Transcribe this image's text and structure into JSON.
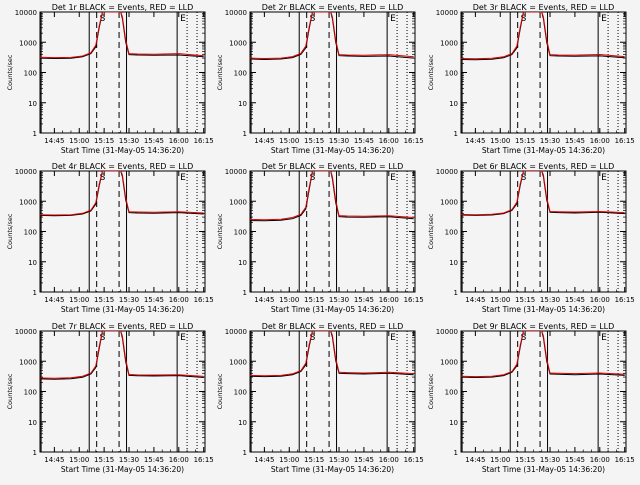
{
  "figure": {
    "background": "#f4f4f4",
    "event_color": "#000000",
    "lld_color": "#e00000"
  },
  "chart_data": [
    {
      "type": "line",
      "title": "Det 1r BLACK = Events, RED = LLD",
      "xlabel": "Start Time (31-May-05 14:36:20)",
      "ylabel": "Counts/sec",
      "yscale": "log",
      "ylim": [
        1,
        10000
      ],
      "yticks": [
        "1",
        "10",
        "100",
        "1000",
        "10000"
      ],
      "xlim": [
        "14:36:20",
        "16:15"
      ],
      "xticks": [
        "14:45",
        "15:00",
        "15:15",
        "15:30",
        "15:45",
        "16:00",
        "16:15"
      ],
      "markers": [
        "S",
        "E"
      ],
      "series": [
        {
          "role": "events",
          "x": [
            "14:36",
            "14:45",
            "14:55",
            "15:02",
            "15:07",
            "15:10",
            "15:12",
            "15:14",
            "15:15",
            "15:25",
            "15:26",
            "15:28",
            "15:30",
            "15:35",
            "15:45",
            "16:00",
            "16:15"
          ],
          "y": [
            300,
            290,
            295,
            330,
            420,
            700,
            3000,
            10000,
            10000,
            10000,
            6000,
            1000,
            390,
            380,
            370,
            380,
            330
          ]
        },
        {
          "role": "lld",
          "x": [
            "14:36",
            "14:45",
            "14:55",
            "15:02",
            "15:07",
            "15:10",
            "15:12",
            "15:14",
            "15:15",
            "15:25",
            "15:26",
            "15:28",
            "15:30",
            "15:35",
            "15:45",
            "16:00",
            "16:15"
          ],
          "y": [
            320,
            310,
            315,
            350,
            450,
            800,
            3500,
            10000,
            10000,
            10000,
            7000,
            1200,
            420,
            410,
            400,
            420,
            360
          ]
        }
      ]
    },
    {
      "type": "line",
      "title": "Det 2r BLACK = Events, RED = LLD",
      "xlabel": "Start Time (31-May-05 14:36:20)",
      "ylabel": "Counts/sec",
      "yscale": "log",
      "ylim": [
        1,
        10000
      ],
      "yticks": [
        "1",
        "10",
        "100",
        "1000",
        "10000"
      ],
      "xlim": [
        "14:36:20",
        "16:15"
      ],
      "xticks": [
        "14:45",
        "15:00",
        "15:15",
        "15:30",
        "15:45",
        "16:00",
        "16:15"
      ],
      "markers": [
        "S",
        "E"
      ],
      "series": [
        {
          "role": "events",
          "x": [
            "14:36",
            "14:45",
            "14:55",
            "15:02",
            "15:07",
            "15:10",
            "15:12",
            "15:14",
            "15:15",
            "15:25",
            "15:26",
            "15:28",
            "15:30",
            "15:35",
            "15:45",
            "16:00",
            "16:15"
          ],
          "y": [
            280,
            270,
            280,
            310,
            400,
            650,
            2800,
            10000,
            10000,
            10000,
            6000,
            1000,
            360,
            350,
            340,
            350,
            300
          ]
        },
        {
          "role": "lld",
          "x": [
            "14:36",
            "14:45",
            "14:55",
            "15:02",
            "15:07",
            "15:10",
            "15:12",
            "15:14",
            "15:15",
            "15:25",
            "15:26",
            "15:28",
            "15:30",
            "15:35",
            "15:45",
            "16:00",
            "16:15"
          ],
          "y": [
            300,
            290,
            300,
            335,
            430,
            750,
            3300,
            10000,
            10000,
            10000,
            7000,
            1200,
            390,
            380,
            370,
            390,
            330
          ]
        }
      ]
    },
    {
      "type": "line",
      "title": "Det 3r BLACK = Events, RED = LLD",
      "xlabel": "Start Time (31-May-05 14:36:20)",
      "ylabel": "Counts/sec",
      "yscale": "log",
      "ylim": [
        1,
        10000
      ],
      "yticks": [
        "1",
        "10",
        "100",
        "1000",
        "10000"
      ],
      "xlim": [
        "14:36:20",
        "16:15"
      ],
      "xticks": [
        "14:45",
        "15:00",
        "15:15",
        "15:30",
        "15:45",
        "16:00",
        "16:15"
      ],
      "markers": [
        "S",
        "E"
      ],
      "series": [
        {
          "role": "events",
          "x": [
            "14:36",
            "14:45",
            "14:55",
            "15:02",
            "15:07",
            "15:10",
            "15:12",
            "15:14",
            "15:15",
            "15:25",
            "15:26",
            "15:28",
            "15:30",
            "15:35",
            "15:45",
            "16:00",
            "16:15"
          ],
          "y": [
            270,
            265,
            275,
            305,
            390,
            640,
            2700,
            10000,
            10000,
            10000,
            6000,
            1000,
            360,
            350,
            345,
            355,
            305
          ]
        },
        {
          "role": "lld",
          "x": [
            "14:36",
            "14:45",
            "14:55",
            "15:02",
            "15:07",
            "15:10",
            "15:12",
            "15:14",
            "15:15",
            "15:25",
            "15:26",
            "15:28",
            "15:30",
            "15:35",
            "15:45",
            "16:00",
            "16:15"
          ],
          "y": [
            290,
            285,
            295,
            330,
            420,
            740,
            3200,
            10000,
            10000,
            10000,
            7000,
            1200,
            390,
            380,
            375,
            395,
            335
          ]
        }
      ]
    },
    {
      "type": "line",
      "title": "Det 4r BLACK = Events, RED = LLD",
      "xlabel": "Start Time (31-May-05 14:36:20)",
      "ylabel": "Counts/sec",
      "yscale": "log",
      "ylim": [
        1,
        10000
      ],
      "yticks": [
        "1",
        "10",
        "100",
        "1000",
        "10000"
      ],
      "xlim": [
        "14:36:20",
        "16:15"
      ],
      "xticks": [
        "14:45",
        "15:00",
        "15:15",
        "15:30",
        "15:45",
        "16:00",
        "16:15"
      ],
      "markers": [
        "S",
        "E"
      ],
      "series": [
        {
          "role": "events",
          "x": [
            "14:36",
            "14:45",
            "14:55",
            "15:02",
            "15:07",
            "15:10",
            "15:12",
            "15:14",
            "15:15",
            "15:25",
            "15:26",
            "15:28",
            "15:30",
            "15:35",
            "15:45",
            "16:00",
            "16:15"
          ],
          "y": [
            340,
            330,
            340,
            380,
            480,
            800,
            3200,
            10000,
            10000,
            10000,
            6500,
            1100,
            420,
            410,
            400,
            420,
            380
          ]
        },
        {
          "role": "lld",
          "x": [
            "14:36",
            "14:45",
            "14:55",
            "15:02",
            "15:07",
            "15:10",
            "15:12",
            "15:14",
            "15:15",
            "15:25",
            "15:26",
            "15:28",
            "15:30",
            "15:35",
            "15:45",
            "16:00",
            "16:15"
          ],
          "y": [
            360,
            350,
            360,
            400,
            510,
            900,
            3700,
            10000,
            10000,
            10000,
            7500,
            1300,
            450,
            440,
            430,
            450,
            410
          ]
        }
      ]
    },
    {
      "type": "line",
      "title": "Det 5r BLACK = Events, RED = LLD",
      "xlabel": "Start Time (31-May-05 14:36:20)",
      "ylabel": "Counts/sec",
      "yscale": "log",
      "ylim": [
        1,
        10000
      ],
      "yticks": [
        "1",
        "10",
        "100",
        "1000",
        "10000"
      ],
      "xlim": [
        "14:36:20",
        "16:15"
      ],
      "xticks": [
        "14:45",
        "15:00",
        "15:15",
        "15:30",
        "15:45",
        "16:00",
        "16:15"
      ],
      "markers": [
        "S",
        "E"
      ],
      "series": [
        {
          "role": "events",
          "x": [
            "14:36",
            "14:45",
            "14:55",
            "15:02",
            "15:07",
            "15:10",
            "15:12",
            "15:14",
            "15:15",
            "15:25",
            "15:26",
            "15:28",
            "15:30",
            "15:35",
            "15:45",
            "16:00",
            "16:15"
          ],
          "y": [
            230,
            225,
            235,
            265,
            340,
            560,
            2400,
            10000,
            10000,
            10000,
            5500,
            900,
            310,
            300,
            295,
            305,
            265
          ]
        },
        {
          "role": "lld",
          "x": [
            "14:36",
            "14:45",
            "14:55",
            "15:02",
            "15:07",
            "15:10",
            "15:12",
            "15:14",
            "15:15",
            "15:25",
            "15:26",
            "15:28",
            "15:30",
            "15:35",
            "15:45",
            "16:00",
            "16:15"
          ],
          "y": [
            250,
            245,
            255,
            290,
            370,
            640,
            2900,
            10000,
            10000,
            10000,
            6500,
            1100,
            335,
            325,
            320,
            330,
            290
          ]
        }
      ]
    },
    {
      "type": "line",
      "title": "Det 6r BLACK = Events, RED = LLD",
      "xlabel": "Start Time (31-May-05 14:36:20)",
      "ylabel": "Counts/sec",
      "yscale": "log",
      "ylim": [
        1,
        10000
      ],
      "yticks": [
        "1",
        "10",
        "100",
        "1000",
        "10000"
      ],
      "xlim": [
        "14:36:20",
        "16:15"
      ],
      "xticks": [
        "14:45",
        "15:00",
        "15:15",
        "15:30",
        "15:45",
        "16:00",
        "16:15"
      ],
      "markers": [
        "S",
        "E"
      ],
      "series": [
        {
          "role": "events",
          "x": [
            "14:36",
            "14:45",
            "14:55",
            "15:02",
            "15:07",
            "15:10",
            "15:12",
            "15:14",
            "15:15",
            "15:25",
            "15:26",
            "15:28",
            "15:30",
            "15:35",
            "15:45",
            "16:00",
            "16:15"
          ],
          "y": [
            350,
            340,
            350,
            390,
            500,
            820,
            3300,
            10000,
            10000,
            10000,
            6500,
            1100,
            430,
            420,
            410,
            430,
            390
          ]
        },
        {
          "role": "lld",
          "x": [
            "14:36",
            "14:45",
            "14:55",
            "15:02",
            "15:07",
            "15:10",
            "15:12",
            "15:14",
            "15:15",
            "15:25",
            "15:26",
            "15:28",
            "15:30",
            "15:35",
            "15:45",
            "16:00",
            "16:15"
          ],
          "y": [
            370,
            360,
            370,
            410,
            530,
            920,
            3800,
            10000,
            10000,
            10000,
            7500,
            1300,
            460,
            450,
            440,
            460,
            420
          ]
        }
      ]
    },
    {
      "type": "line",
      "title": "Det 7r BLACK = Events, RED = LLD",
      "xlabel": "Start Time (31-May-05 14:36:20)",
      "ylabel": "Counts/sec",
      "yscale": "log",
      "ylim": [
        1,
        10000
      ],
      "yticks": [
        "1",
        "10",
        "100",
        "1000",
        "10000"
      ],
      "xlim": [
        "14:36:20",
        "16:15"
      ],
      "xticks": [
        "14:45",
        "15:00",
        "15:15",
        "15:30",
        "15:45",
        "16:00",
        "16:15"
      ],
      "markers": [
        "S",
        "E"
      ],
      "series": [
        {
          "role": "events",
          "x": [
            "14:36",
            "14:45",
            "14:55",
            "15:02",
            "15:07",
            "15:10",
            "15:12",
            "15:14",
            "15:15",
            "15:25",
            "15:26",
            "15:28",
            "15:30",
            "15:35",
            "15:45",
            "16:00",
            "16:15"
          ],
          "y": [
            260,
            255,
            265,
            295,
            380,
            620,
            2600,
            10000,
            10000,
            10000,
            5800,
            950,
            340,
            330,
            325,
            335,
            290
          ]
        },
        {
          "role": "lld",
          "x": [
            "14:36",
            "14:45",
            "14:55",
            "15:02",
            "15:07",
            "15:10",
            "15:12",
            "15:14",
            "15:15",
            "15:25",
            "15:26",
            "15:28",
            "15:30",
            "15:35",
            "15:45",
            "16:00",
            "16:15"
          ],
          "y": [
            280,
            275,
            285,
            320,
            410,
            700,
            3100,
            10000,
            10000,
            10000,
            6800,
            1150,
            365,
            355,
            350,
            360,
            315
          ]
        }
      ]
    },
    {
      "type": "line",
      "title": "Det 8r BLACK = Events, RED = LLD",
      "xlabel": "Start Time (31-May-05 14:36:20)",
      "ylabel": "Counts/sec",
      "yscale": "log",
      "ylim": [
        1,
        10000
      ],
      "yticks": [
        "1",
        "10",
        "100",
        "1000",
        "10000"
      ],
      "xlim": [
        "14:36:20",
        "16:15"
      ],
      "xticks": [
        "14:45",
        "15:00",
        "15:15",
        "15:30",
        "15:45",
        "16:00",
        "16:15"
      ],
      "markers": [
        "S",
        "E"
      ],
      "series": [
        {
          "role": "events",
          "x": [
            "14:36",
            "14:45",
            "14:55",
            "15:02",
            "15:07",
            "15:10",
            "15:12",
            "15:14",
            "15:15",
            "15:25",
            "15:26",
            "15:28",
            "15:30",
            "15:35",
            "15:45",
            "16:00",
            "16:15"
          ],
          "y": [
            320,
            310,
            320,
            360,
            460,
            760,
            3100,
            10000,
            10000,
            10000,
            6200,
            1050,
            400,
            390,
            380,
            400,
            360
          ]
        },
        {
          "role": "lld",
          "x": [
            "14:36",
            "14:45",
            "14:55",
            "15:02",
            "15:07",
            "15:10",
            "15:12",
            "15:14",
            "15:15",
            "15:25",
            "15:26",
            "15:28",
            "15:30",
            "15:35",
            "15:45",
            "16:00",
            "16:15"
          ],
          "y": [
            340,
            330,
            340,
            385,
            490,
            860,
            3600,
            10000,
            10000,
            10000,
            7200,
            1250,
            430,
            420,
            410,
            430,
            390
          ]
        }
      ]
    },
    {
      "type": "line",
      "title": "Det 9r BLACK = Events, RED = LLD",
      "xlabel": "Start Time (31-May-05 14:36:20)",
      "ylabel": "Counts/sec",
      "yscale": "log",
      "ylim": [
        1,
        10000
      ],
      "yticks": [
        "1",
        "10",
        "100",
        "1000",
        "10000"
      ],
      "xlim": [
        "14:36:20",
        "16:15"
      ],
      "xticks": [
        "14:45",
        "15:00",
        "15:15",
        "15:30",
        "15:45",
        "16:00",
        "16:15"
      ],
      "markers": [
        "S",
        "E"
      ],
      "series": [
        {
          "role": "events",
          "x": [
            "14:36",
            "14:45",
            "14:55",
            "15:02",
            "15:07",
            "15:10",
            "15:12",
            "15:14",
            "15:15",
            "15:25",
            "15:26",
            "15:28",
            "15:30",
            "15:35",
            "15:45",
            "16:00",
            "16:15"
          ],
          "y": [
            300,
            290,
            300,
            335,
            430,
            700,
            2900,
            10000,
            10000,
            10000,
            6000,
            1000,
            380,
            370,
            360,
            380,
            340
          ]
        },
        {
          "role": "lld",
          "x": [
            "14:36",
            "14:45",
            "14:55",
            "15:02",
            "15:07",
            "15:10",
            "15:12",
            "15:14",
            "15:15",
            "15:25",
            "15:26",
            "15:28",
            "15:30",
            "15:35",
            "15:45",
            "16:00",
            "16:15"
          ],
          "y": [
            320,
            310,
            320,
            360,
            460,
            790,
            3400,
            10000,
            10000,
            10000,
            7000,
            1200,
            410,
            400,
            390,
            410,
            370
          ]
        }
      ]
    }
  ]
}
